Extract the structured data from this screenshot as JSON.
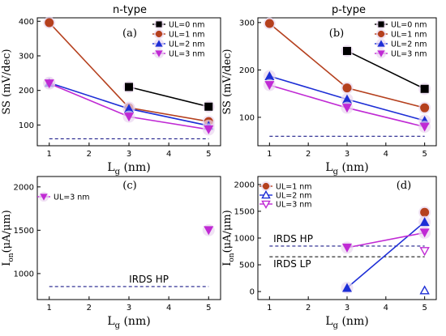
{
  "titles": {
    "left": "n-type",
    "right": "p-type"
  },
  "colors": {
    "ul0": "#000000",
    "ul1": "#b5401e",
    "ul2": "#1d2ed6",
    "ul3": "#c02ad4",
    "ref": "#1f1f8a",
    "marker_glow": "#ead7f0"
  },
  "chart_data": [
    {
      "panel": "a",
      "type": "line",
      "panel_label": "(a)",
      "xlabel": "L",
      "xlabel_sub": "g",
      "xlabel_unit": " (nm)",
      "ylabel": "SS (mV/dec)",
      "xlim": [
        0.7,
        5.3
      ],
      "ylim": [
        40,
        410
      ],
      "xticks": [
        1,
        2,
        3,
        4,
        5
      ],
      "yticks": [
        100,
        200,
        300,
        400
      ],
      "legend": "top-right",
      "grid": false,
      "series": [
        {
          "name": "UL=0 nm",
          "color": "ul0",
          "marker": "square",
          "x": [
            3,
            5
          ],
          "y": [
            210,
            153
          ]
        },
        {
          "name": "UL=1 nm",
          "color": "ul1",
          "marker": "circle",
          "x": [
            1,
            3,
            5
          ],
          "y": [
            396,
            150,
            110
          ]
        },
        {
          "name": "UL=2 nm",
          "color": "ul2",
          "marker": "triangle-up",
          "x": [
            1,
            3,
            5
          ],
          "y": [
            222,
            147,
            98
          ]
        },
        {
          "name": "UL=3 nm",
          "color": "ul3",
          "marker": "triangle-down",
          "x": [
            1,
            3,
            5
          ],
          "y": [
            220,
            124,
            87
          ]
        }
      ],
      "references": [
        {
          "y": 60,
          "x": [
            1,
            5
          ],
          "label": ""
        }
      ]
    },
    {
      "panel": "b",
      "type": "line",
      "panel_label": "(b)",
      "xlabel": "L",
      "xlabel_sub": "g",
      "xlabel_unit": " (nm)",
      "ylabel": "SS (mV/dec)",
      "xlim": [
        0.7,
        5.3
      ],
      "ylim": [
        40,
        310
      ],
      "xticks": [
        1,
        2,
        3,
        4,
        5
      ],
      "yticks": [
        100,
        200,
        300
      ],
      "legend": "top-right",
      "grid": false,
      "series": [
        {
          "name": "UL=0 nm",
          "color": "ul0",
          "marker": "square",
          "x": [
            3,
            5
          ],
          "y": [
            240,
            160
          ]
        },
        {
          "name": "UL=1 nm",
          "color": "ul1",
          "marker": "circle",
          "x": [
            1,
            3,
            5
          ],
          "y": [
            298,
            162,
            120
          ]
        },
        {
          "name": "UL=2 nm",
          "color": "ul2",
          "marker": "triangle-up",
          "x": [
            1,
            3,
            5
          ],
          "y": [
            187,
            138,
            93
          ]
        },
        {
          "name": "UL=3 nm",
          "color": "ul3",
          "marker": "triangle-down",
          "x": [
            1,
            3,
            5
          ],
          "y": [
            168,
            120,
            80
          ]
        }
      ],
      "references": [
        {
          "y": 60,
          "x": [
            1,
            5
          ],
          "label": ""
        }
      ]
    },
    {
      "panel": "c",
      "type": "scatter",
      "panel_label": "(c)",
      "xlabel": "L",
      "xlabel_sub": "g",
      "xlabel_unit": " (nm)",
      "ylabel": "I",
      "ylabel_sub": "on",
      "ylabel_unit": "(μA/μm)",
      "xlim": [
        0.7,
        5.3
      ],
      "ylim": [
        700,
        2120
      ],
      "xticks": [
        1,
        2,
        3,
        4,
        5
      ],
      "yticks": [
        1000,
        1500,
        2000
      ],
      "legend": "top-left",
      "grid": false,
      "series": [
        {
          "name": "UL=3 nm",
          "color": "ul3",
          "marker": "triangle-down",
          "x": [
            5
          ],
          "y": [
            1500
          ]
        }
      ],
      "references": [
        {
          "y": 850,
          "x": [
            1,
            5
          ],
          "label": "IRDS HP",
          "label_x": 3.5
        }
      ]
    },
    {
      "panel": "d",
      "type": "line",
      "panel_label": "(d)",
      "xlabel": "L",
      "xlabel_sub": "g",
      "xlabel_unit": " (nm)",
      "ylabel": "I",
      "ylabel_sub": "on",
      "ylabel_unit": "(μA/μm)",
      "xlim": [
        0.7,
        5.3
      ],
      "ylim": [
        -150,
        2150
      ],
      "xticks": [
        1,
        2,
        3,
        4,
        5
      ],
      "yticks": [
        0,
        500,
        1000,
        1500,
        2000
      ],
      "legend": "top-left",
      "grid": false,
      "series": [
        {
          "name": "UL=1 nm",
          "color": "ul1",
          "marker": "circle",
          "x": [
            5
          ],
          "y": [
            1480
          ]
        },
        {
          "name": "UL=2 nm",
          "color": "ul2",
          "marker": "triangle-up",
          "x": [
            3,
            5
          ],
          "y": [
            70,
            1300
          ]
        },
        {
          "name": "UL=3 nm",
          "color": "ul3",
          "marker": "triangle-down",
          "x": [
            3,
            5
          ],
          "y": [
            820,
            1100
          ]
        }
      ],
      "open_series": [
        {
          "name": "UL=2 nm",
          "color": "ul2",
          "marker": "triangle-up-open",
          "x": [
            5
          ],
          "y": [
            20
          ]
        },
        {
          "name": "UL=3 nm",
          "color": "ul3",
          "marker": "triangle-down-open",
          "x": [
            5
          ],
          "y": [
            760
          ]
        }
      ],
      "references": [
        {
          "y": 850,
          "x": [
            1,
            5
          ],
          "label": "IRDS HP",
          "label_x": 1.1
        },
        {
          "y": 650,
          "x": [
            1,
            5
          ],
          "label": "IRDS LP",
          "label_x": 1.1
        }
      ]
    }
  ]
}
